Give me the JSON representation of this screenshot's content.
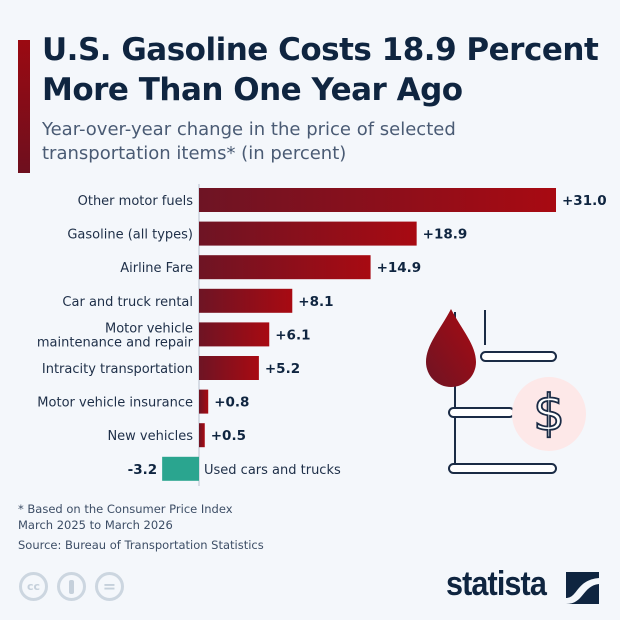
{
  "title": "U.S. Gasoline Costs 18.9 Percent More Than One Year Ago",
  "subtitle": "Year-over-year change in the price of selected transportation items* (in percent)",
  "chart_data": {
    "type": "bar",
    "orientation": "horizontal",
    "categories": [
      "Other motor fuels",
      "Gasoline (all types)",
      "Airline Fare",
      "Car and truck rental",
      "Motor vehicle maintenance and repair",
      "Intracity transportation",
      "Motor vehicle insurance",
      "New vehicles",
      "Used cars and trucks"
    ],
    "values": [
      31.0,
      18.9,
      14.9,
      8.1,
      6.1,
      5.2,
      0.8,
      0.5,
      -3.2
    ],
    "data_labels": [
      "+31.0",
      "+18.9",
      "+14.9",
      "+8.1",
      "+6.1",
      "+5.2",
      "+0.8",
      "+0.5",
      "-3.2"
    ],
    "colors": {
      "positive": "#9b0a12",
      "positive_dark": "#6e1424",
      "negative": "#2aa58f"
    },
    "grid": false
  },
  "footer": {
    "note": "* Based on the Consumer Price Index",
    "period": "March 2025 to March 2026",
    "source": "Source: Bureau of Transportation Statistics"
  },
  "license_icons": [
    "cc-icon",
    "attribution-icon",
    "no-derivatives-icon"
  ],
  "license_text": {
    "cc": "cc",
    "nd": "="
  },
  "brand": "statista",
  "illustration": "fuel-barrel-with-drop-and-dollar-icon"
}
